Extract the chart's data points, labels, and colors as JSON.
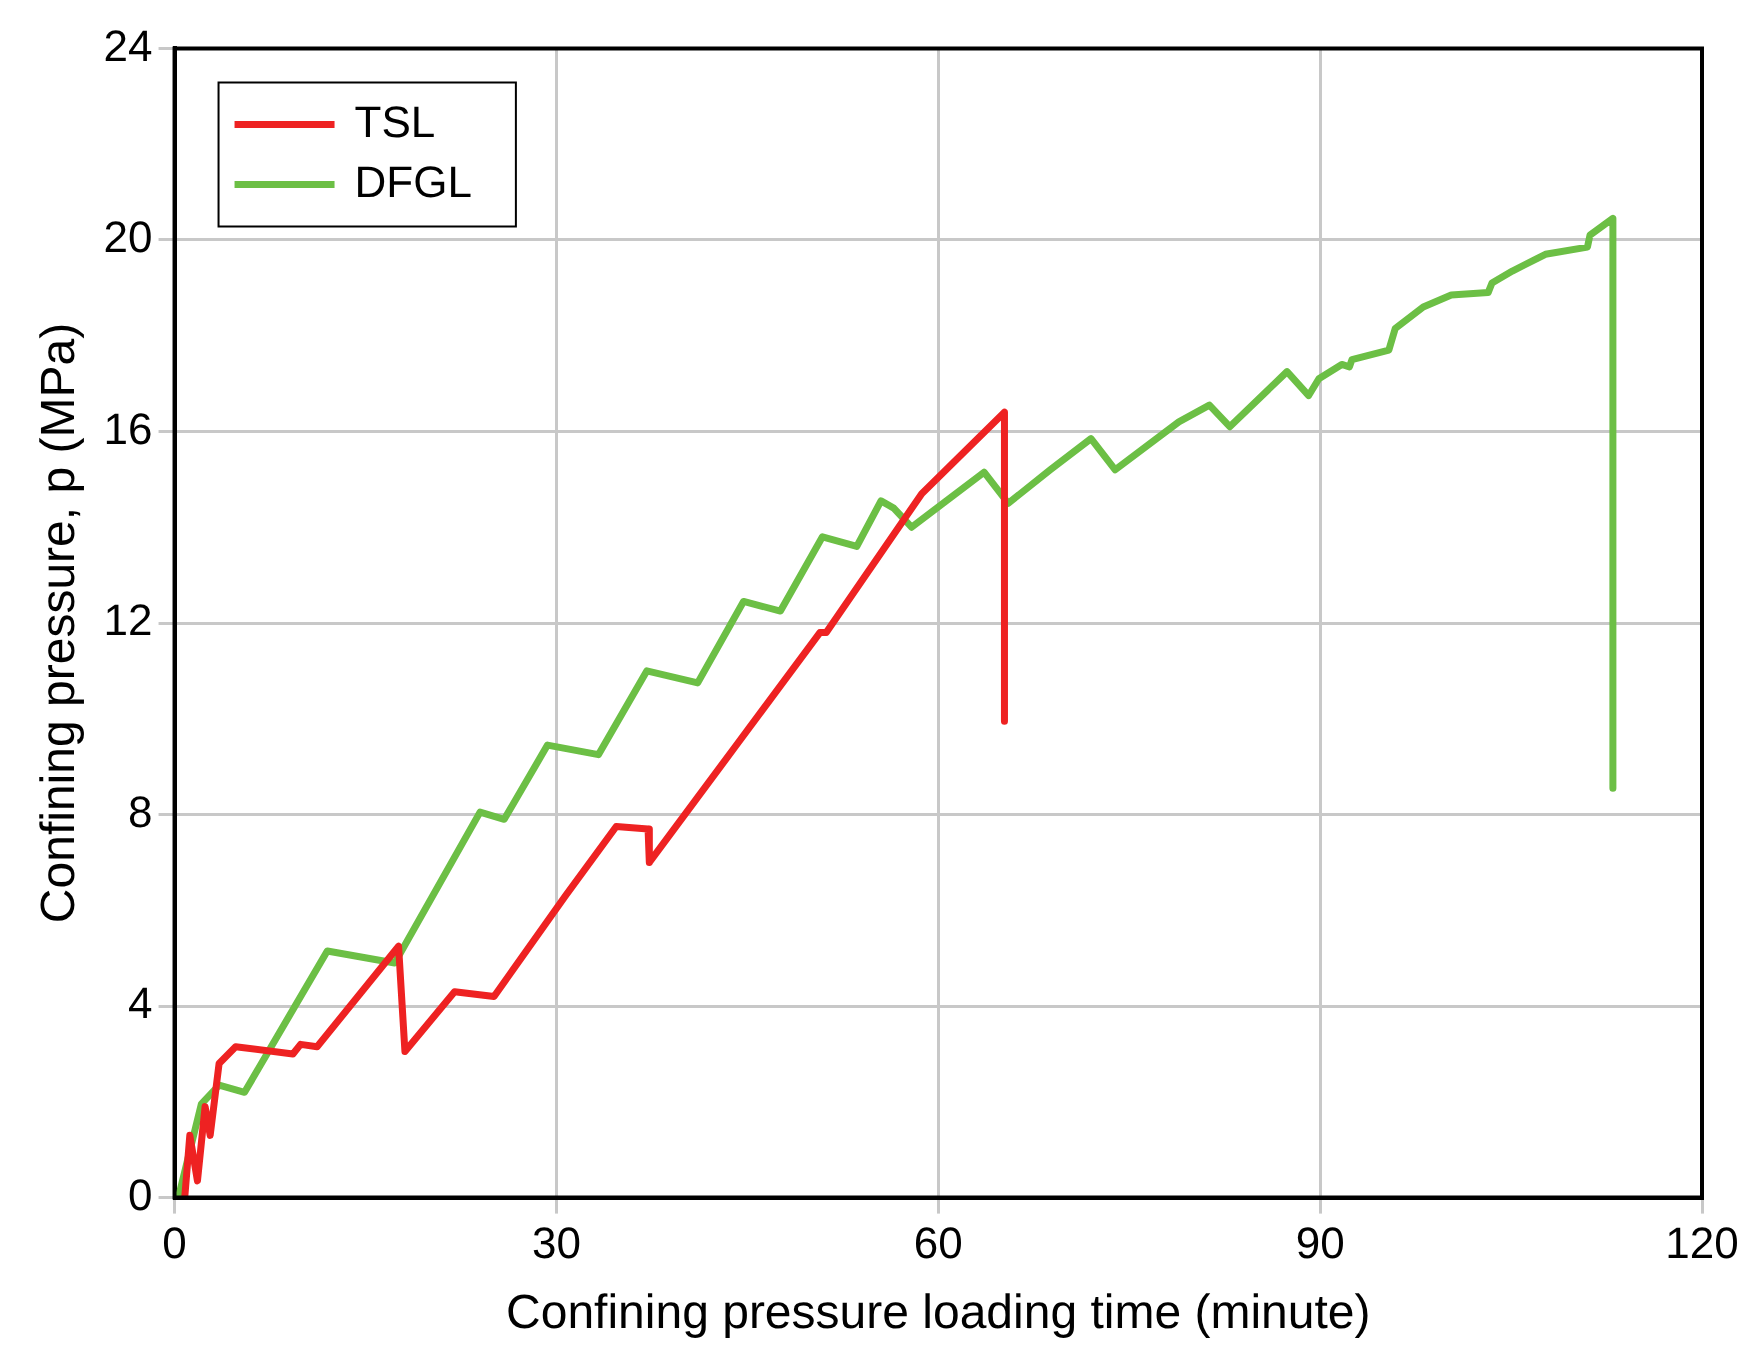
{
  "chart_data": {
    "type": "line",
    "xlabel": "Confining pressure loading time (minute)",
    "ylabel": "Confining pressure, p (MPa)",
    "xlim": [
      0,
      120
    ],
    "xticks": [
      0,
      30,
      60,
      90,
      120
    ],
    "ylim": [
      0,
      24
    ],
    "yticks": [
      0,
      4,
      8,
      12,
      16,
      20,
      24
    ],
    "grid": true,
    "legend": "top left",
    "marker": "none",
    "line_style": "solid",
    "series": [
      {
        "name": "TSL",
        "color": "#ee2222",
        "x": [
          0.8,
          1.2,
          1.8,
          2.4,
          2.8,
          3.5,
          4.8,
          9.3,
          9.9,
          11.2,
          17.6,
          18.1,
          22,
          25.1,
          30.7,
          34.7,
          37.2,
          37.3,
          44,
          50.7,
          51.2,
          58.7,
          65.2,
          65.2
        ],
        "values": [
          0,
          1.3,
          0.35,
          1.9,
          1.3,
          2.8,
          3.15,
          3.0,
          3.2,
          3.15,
          5.25,
          3.05,
          4.3,
          4.2,
          6.3,
          7.75,
          7.7,
          7.0,
          9.4,
          11.8,
          11.8,
          14.7,
          16.4,
          9.95
        ]
      },
      {
        "name": "DFGL",
        "color": "#6cbf45",
        "x": [
          0.3,
          2.1,
          3.5,
          5.5,
          12,
          17.3,
          24,
          25.9,
          29.3,
          33.3,
          37.1,
          41.1,
          44.7,
          47.6,
          50.9,
          53.6,
          55.5,
          56.5,
          57.9,
          63.6,
          65.5,
          68.8,
          72,
          73.9,
          78.9,
          81.3,
          82.9,
          87.4,
          89.1,
          89.9,
          91.7,
          92.3,
          92.5,
          95.4,
          95.9,
          98.1,
          100.3,
          103.2,
          103.5,
          105.1,
          107.7,
          111,
          111.2,
          113,
          113
        ],
        "values": [
          0,
          1.95,
          2.35,
          2.2,
          5.15,
          4.9,
          8.05,
          7.9,
          9.45,
          9.25,
          11.0,
          10.75,
          12.45,
          12.25,
          13.8,
          13.6,
          14.55,
          14.4,
          14.0,
          15.15,
          14.5,
          15.2,
          15.85,
          15.2,
          16.2,
          16.55,
          16.1,
          17.25,
          16.75,
          17.1,
          17.4,
          17.35,
          17.5,
          17.7,
          18.15,
          18.6,
          18.85,
          18.9,
          19.1,
          19.35,
          19.7,
          19.85,
          20.1,
          20.45,
          8.55
        ]
      }
    ]
  }
}
